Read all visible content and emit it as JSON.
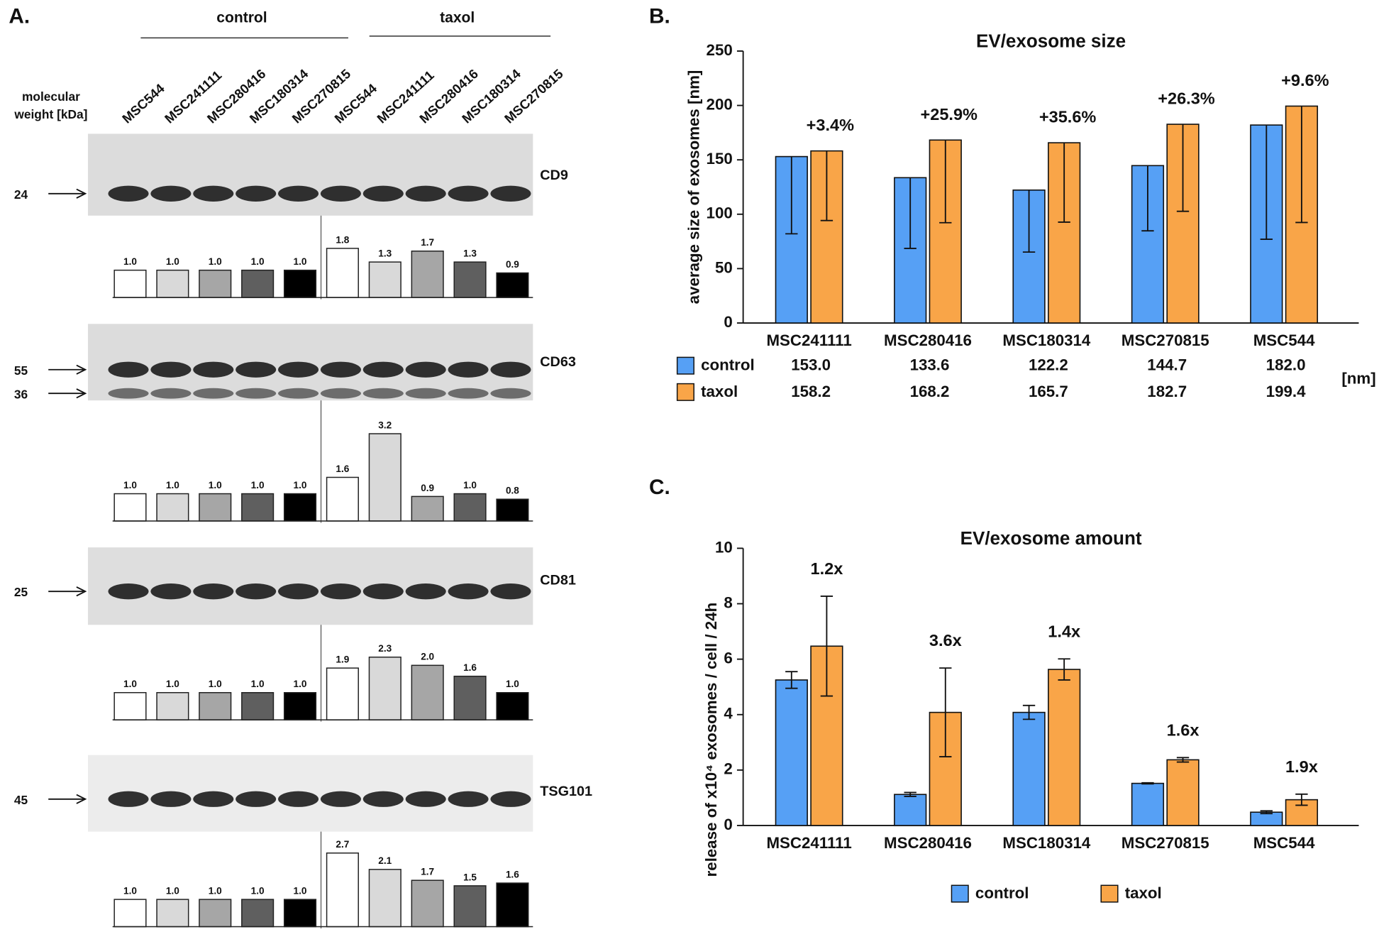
{
  "blot": {
    "panel": "A.",
    "groups": [
      "control",
      "taxol"
    ],
    "lanes": [
      "MSC544",
      "MSC241111",
      "MSC280416",
      "MSC180314",
      "MSC270815",
      "MSC544",
      "MSC241111",
      "MSC280416",
      "MSC180314",
      "MSC270815"
    ],
    "mw_label": [
      "molecular",
      "weight [kDa]"
    ]
  },
  "chart_data": [
    {
      "type": "blot",
      "marker": "CD9",
      "mw_markers": [
        24
      ],
      "values": [
        1.0,
        1.0,
        1.0,
        1.0,
        1.0,
        1.8,
        1.3,
        1.7,
        1.3,
        0.9
      ],
      "value_labels": [
        "1.0",
        "1.0",
        "1.0",
        "1.0",
        "1.0",
        "1.8",
        "1.3",
        "1.7",
        "1.3",
        "0.9"
      ],
      "colors": [
        "#ffffff",
        "#d9d9d9",
        "#a6a6a6",
        "#5f5f5f",
        "#000000",
        "#ffffff",
        "#d9d9d9",
        "#a6a6a6",
        "#5f5f5f",
        "#000000"
      ]
    },
    {
      "type": "blot",
      "marker": "CD63",
      "mw_markers": [
        55,
        36
      ],
      "values": [
        1.0,
        1.0,
        1.0,
        1.0,
        1.0,
        1.6,
        3.2,
        0.9,
        1.0,
        0.8
      ],
      "value_labels": [
        "1.0",
        "1.0",
        "1.0",
        "1.0",
        "1.0",
        "1.6",
        "3.2",
        "0.9",
        "1.0",
        "0.8"
      ],
      "colors": [
        "#ffffff",
        "#d9d9d9",
        "#a6a6a6",
        "#5f5f5f",
        "#000000",
        "#ffffff",
        "#d9d9d9",
        "#a6a6a6",
        "#5f5f5f",
        "#000000"
      ]
    },
    {
      "type": "blot",
      "marker": "CD81",
      "mw_markers": [
        25
      ],
      "values": [
        1.0,
        1.0,
        1.0,
        1.0,
        1.0,
        1.9,
        2.3,
        2.0,
        1.6,
        1.0
      ],
      "value_labels": [
        "1.0",
        "1.0",
        "1.0",
        "1.0",
        "1.0",
        "1.9",
        "2.3",
        "2.0",
        "1.6",
        "1.0"
      ],
      "colors": [
        "#ffffff",
        "#d9d9d9",
        "#a6a6a6",
        "#5f5f5f",
        "#000000",
        "#ffffff",
        "#d9d9d9",
        "#a6a6a6",
        "#5f5f5f",
        "#000000"
      ]
    },
    {
      "type": "blot",
      "marker": "TSG101",
      "mw_markers": [
        45
      ],
      "values": [
        1.0,
        1.0,
        1.0,
        1.0,
        1.0,
        2.7,
        2.1,
        1.7,
        1.5,
        1.6
      ],
      "value_labels": [
        "1.0",
        "1.0",
        "1.0",
        "1.0",
        "1.0",
        "2.7",
        "2.1",
        "1.7",
        "1.5",
        "1.6"
      ],
      "colors": [
        "#ffffff",
        "#d9d9d9",
        "#a6a6a6",
        "#5f5f5f",
        "#000000",
        "#ffffff",
        "#d9d9d9",
        "#a6a6a6",
        "#5f5f5f",
        "#000000"
      ]
    },
    {
      "type": "bar",
      "panel": "B.",
      "title": "EV/exosome size",
      "ylabel": "average size of exosomes [nm]",
      "categories": [
        "MSC241111",
        "MSC280416",
        "MSC180314",
        "MSC270815",
        "MSC544"
      ],
      "series": [
        {
          "name": "control",
          "color": "#56a0f5",
          "values": [
            153.0,
            133.6,
            122.2,
            144.7,
            182.0
          ],
          "value_labels": [
            "153.0",
            "133.6",
            "122.2",
            "144.7",
            "182.0"
          ],
          "errors": [
            71,
            65,
            57,
            60,
            105
          ]
        },
        {
          "name": "taxol",
          "color": "#f9a548",
          "values": [
            158.2,
            168.2,
            165.7,
            182.7,
            199.4
          ],
          "value_labels": [
            "158.2",
            "168.2",
            "165.7",
            "182.7",
            "199.4"
          ],
          "errors": [
            64,
            76,
            73,
            80,
            107
          ]
        }
      ],
      "error_style": "lower",
      "annotations": [
        "+3.4%",
        "+25.9%",
        "+35.6%",
        "+26.3%",
        "+9.6%"
      ],
      "unit": "[nm]",
      "ylim": [
        0,
        250
      ],
      "yticks": [
        0,
        50,
        100,
        150,
        200,
        250
      ],
      "legend": "table"
    },
    {
      "type": "bar",
      "panel": "C.",
      "title": "EV/exosome amount",
      "ylabel": "release of x10⁴ exosomes / cell / 24h",
      "categories": [
        "MSC241111",
        "MSC280416",
        "MSC180314",
        "MSC270815",
        "MSC544"
      ],
      "series": [
        {
          "name": "control",
          "color": "#56a0f5",
          "values": [
            5.25,
            1.12,
            4.08,
            1.52,
            0.48
          ],
          "errors": [
            0.3,
            0.07,
            0.25,
            0.02,
            0.05
          ]
        },
        {
          "name": "taxol",
          "color": "#f9a548",
          "values": [
            6.47,
            4.08,
            5.63,
            2.37,
            0.93
          ],
          "errors": [
            1.8,
            1.6,
            0.38,
            0.08,
            0.2
          ]
        }
      ],
      "error_style": "both",
      "annotations": [
        "1.2x",
        "3.6x",
        "1.4x",
        "1.6x",
        "1.9x"
      ],
      "ylim": [
        0,
        10
      ],
      "yticks": [
        0,
        2,
        4,
        6,
        8,
        10
      ],
      "legend": "bottom"
    }
  ]
}
